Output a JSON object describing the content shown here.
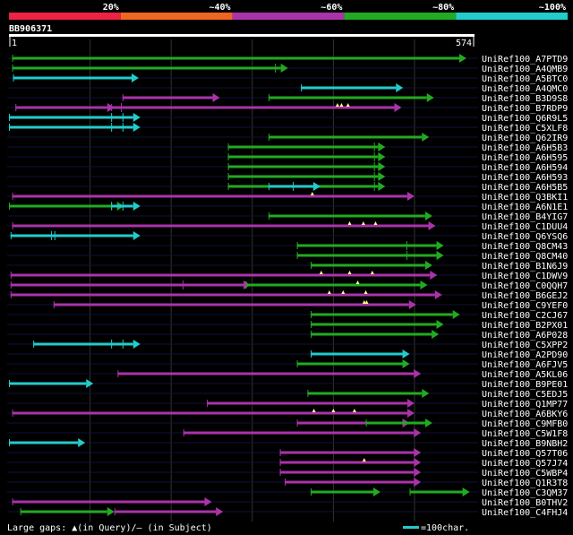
{
  "query": {
    "name": "BB906371",
    "length": 574,
    "start_label": "1",
    "end_label": "574"
  },
  "legend": {
    "gaps_text": "Large gaps: ▲(in Query)/– (in Subject)",
    "scale_text": "=100char."
  },
  "colors": {
    "background": "#000000",
    "grid": "#333333",
    "axis": "#ffffff",
    "text": "#ffffff",
    "gap_marker": "#ffff88",
    "red": "#ee2244",
    "orange": "#ee6622",
    "purple": "#aa33aa",
    "green": "#22aa22",
    "cyan": "#22cccc"
  },
  "chart_data": {
    "type": "alignment",
    "x_range": [
      0,
      574
    ],
    "grid_x": [
      100,
      200,
      300,
      400,
      500
    ],
    "identity_bins": [
      {
        "label": "20%",
        "color": "red"
      },
      {
        "label": "~40%",
        "color": "orange"
      },
      {
        "label": "~60%",
        "color": "purple"
      },
      {
        "label": "~80%",
        "color": "green"
      },
      {
        "label": "~100%",
        "color": "cyan"
      }
    ],
    "hits": [
      {
        "name": "UniRef100_A7PTD9",
        "color": "green",
        "start": 4,
        "end": 564,
        "ticks": [],
        "gaps": [],
        "sgaps": [
          [
            420,
            430
          ],
          [
            450,
            472
          ]
        ]
      },
      {
        "name": "UniRef100_A4QMB9",
        "color": "green",
        "start": 4,
        "end": 344,
        "ticks": [
          328
        ],
        "gaps": [],
        "sgaps": []
      },
      {
        "name": "UniRef100_A5BTC0",
        "color": "cyan",
        "start": 5,
        "end": 160,
        "ticks": [],
        "gaps": [],
        "sgaps": []
      },
      {
        "name": "UniRef100_A4QMC0",
        "color": "cyan",
        "start": 360,
        "end": 486,
        "ticks": [],
        "gaps": [],
        "sgaps": []
      },
      {
        "name": "UniRef100_B3D9S8",
        "color": "purple",
        "start": 140,
        "end": 260,
        "ticks": [],
        "gaps": [],
        "sgaps": []
      },
      {
        "name": "UniRef100_B3D9S8",
        "color": "green",
        "start": 320,
        "end": 524,
        "ticks": [],
        "gaps": [],
        "sgaps": []
      },
      {
        "name": "UniRef100_B7RDP9",
        "color": "purple",
        "start": 8,
        "end": 130,
        "ticks": [],
        "gaps": [],
        "sgaps": []
      },
      {
        "name": "UniRef100_B7RDP9",
        "color": "purple",
        "start": 126,
        "end": 484,
        "ticks": [
          138
        ],
        "gaps": [
          405,
          410,
          418
        ],
        "sgaps": []
      },
      {
        "name": "UniRef100_Q6R9L5",
        "color": "cyan",
        "start": 0,
        "end": 162,
        "ticks": [
          126,
          140
        ],
        "gaps": [],
        "sgaps": []
      },
      {
        "name": "UniRef100_C5XLF8",
        "color": "cyan",
        "start": 0,
        "end": 162,
        "ticks": [
          126,
          140
        ],
        "gaps": [],
        "sgaps": []
      },
      {
        "name": "UniRef100_Q62IR9",
        "color": "green",
        "start": 320,
        "end": 518,
        "ticks": [],
        "gaps": [],
        "sgaps": []
      },
      {
        "name": "UniRef100_A6H5B3",
        "color": "green",
        "start": 270,
        "end": 464,
        "ticks": [
          450
        ],
        "gaps": [],
        "sgaps": []
      },
      {
        "name": "UniRef100_A6H595",
        "color": "green",
        "start": 270,
        "end": 464,
        "ticks": [
          450
        ],
        "gaps": [],
        "sgaps": []
      },
      {
        "name": "UniRef100_A6H594",
        "color": "green",
        "start": 270,
        "end": 464,
        "ticks": [
          450
        ],
        "gaps": [],
        "sgaps": []
      },
      {
        "name": "UniRef100_A6H593",
        "color": "green",
        "start": 270,
        "end": 464,
        "ticks": [
          450
        ],
        "gaps": [],
        "sgaps": []
      },
      {
        "name": "UniRef100_A6H5B5",
        "color": "green",
        "start": 270,
        "end": 464,
        "ticks": [
          450
        ],
        "gaps": [],
        "sgaps": []
      },
      {
        "name": "UniRef100_A6H5B5",
        "color": "cyan",
        "start": 320,
        "end": 384,
        "ticks": [
          350
        ],
        "gaps": [],
        "sgaps": []
      },
      {
        "name": "UniRef100_Q3BKI1",
        "color": "purple",
        "start": 4,
        "end": 500,
        "ticks": [],
        "gaps": [
          374
        ],
        "sgaps": [
          [
            408,
            440
          ]
        ]
      },
      {
        "name": "UniRef100_A6N1E1",
        "color": "green",
        "start": 0,
        "end": 142,
        "ticks": [
          126
        ],
        "gaps": [],
        "sgaps": []
      },
      {
        "name": "UniRef100_A6N1E1",
        "color": "cyan",
        "start": 126,
        "end": 162,
        "ticks": [
          140
        ],
        "gaps": [],
        "sgaps": []
      },
      {
        "name": "UniRef100_B4YIG7",
        "color": "green",
        "start": 320,
        "end": 522,
        "ticks": [],
        "gaps": [],
        "sgaps": []
      },
      {
        "name": "UniRef100_C1DUU4",
        "color": "purple",
        "start": 4,
        "end": 526,
        "ticks": [],
        "gaps": [
          420,
          437,
          452
        ],
        "sgaps": []
      },
      {
        "name": "UniRef100_Q6YSQ6",
        "color": "cyan",
        "start": 2,
        "end": 162,
        "ticks": [
          52,
          56
        ],
        "gaps": [],
        "sgaps": []
      },
      {
        "name": "UniRef100_Q8CM43",
        "color": "green",
        "start": 355,
        "end": 536,
        "ticks": [
          490
        ],
        "gaps": [],
        "sgaps": []
      },
      {
        "name": "UniRef100_Q8CM40",
        "color": "green",
        "start": 355,
        "end": 536,
        "ticks": [
          490
        ],
        "gaps": [],
        "sgaps": []
      },
      {
        "name": "UniRef100_B1N6J9",
        "color": "green",
        "start": 372,
        "end": 522,
        "ticks": [],
        "gaps": [],
        "sgaps": []
      },
      {
        "name": "UniRef100_C1DWV9",
        "color": "purple",
        "start": 2,
        "end": 528,
        "ticks": [],
        "gaps": [
          385,
          420,
          448
        ],
        "sgaps": []
      },
      {
        "name": "UniRef100_C0QQH7",
        "color": "purple",
        "start": 2,
        "end": 298,
        "ticks": [
          214
        ],
        "gaps": [],
        "sgaps": [
          [
            280,
            290
          ]
        ]
      },
      {
        "name": "UniRef100_C0QQH7",
        "color": "green",
        "start": 292,
        "end": 516,
        "ticks": [],
        "gaps": [
          430
        ],
        "sgaps": []
      },
      {
        "name": "UniRef100_B6GEJ2",
        "color": "purple",
        "start": 2,
        "end": 534,
        "ticks": [],
        "gaps": [
          395,
          412,
          440
        ],
        "sgaps": []
      },
      {
        "name": "UniRef100_C9YEF0",
        "color": "purple",
        "start": 55,
        "end": 502,
        "ticks": [],
        "gaps": [
          438,
          441
        ],
        "sgaps": []
      },
      {
        "name": "UniRef100_C2CJ67",
        "color": "green",
        "start": 372,
        "end": 556,
        "ticks": [],
        "gaps": [],
        "sgaps": []
      },
      {
        "name": "UniRef100_B2PX01",
        "color": "green",
        "start": 372,
        "end": 536,
        "ticks": [],
        "gaps": [],
        "sgaps": []
      },
      {
        "name": "UniRef100_A6P028",
        "color": "green",
        "start": 372,
        "end": 530,
        "ticks": [],
        "gaps": [],
        "sgaps": []
      },
      {
        "name": "UniRef100_C5XPP2",
        "color": "cyan",
        "start": 30,
        "end": 162,
        "ticks": [
          126,
          140
        ],
        "gaps": [],
        "sgaps": []
      },
      {
        "name": "UniRef100_A2PD90",
        "color": "cyan",
        "start": 372,
        "end": 494,
        "ticks": [],
        "gaps": [],
        "sgaps": []
      },
      {
        "name": "UniRef100_A6FJV5",
        "color": "green",
        "start": 355,
        "end": 494,
        "ticks": [],
        "gaps": [],
        "sgaps": []
      },
      {
        "name": "UniRef100_A5KL06",
        "color": "purple",
        "start": 134,
        "end": 508,
        "ticks": [],
        "gaps": [],
        "sgaps": []
      },
      {
        "name": "UniRef100_B9PE01",
        "color": "cyan",
        "start": 0,
        "end": 104,
        "ticks": [],
        "gaps": [],
        "sgaps": []
      },
      {
        "name": "UniRef100_C5EDJ5",
        "color": "green",
        "start": 368,
        "end": 518,
        "ticks": [],
        "gaps": [],
        "sgaps": []
      },
      {
        "name": "UniRef100_Q1MP77",
        "color": "purple",
        "start": 244,
        "end": 500,
        "ticks": [],
        "gaps": [],
        "sgaps": []
      },
      {
        "name": "UniRef100_A6BKY6",
        "color": "purple",
        "start": 4,
        "end": 500,
        "ticks": [],
        "gaps": [
          376,
          400,
          426
        ],
        "sgaps": [
          [
            460,
            468
          ]
        ]
      },
      {
        "name": "UniRef100_C9MFB0",
        "color": "purple",
        "start": 355,
        "end": 494,
        "ticks": [],
        "gaps": [],
        "sgaps": []
      },
      {
        "name": "UniRef100_C9MFB0",
        "color": "green",
        "start": 440,
        "end": 522,
        "ticks": [],
        "gaps": [],
        "sgaps": []
      },
      {
        "name": "UniRef100_C5W1F8",
        "color": "purple",
        "start": 215,
        "end": 508,
        "ticks": [],
        "gaps": [],
        "sgaps": [
          [
            395,
            412
          ]
        ]
      },
      {
        "name": "UniRef100_B9NBH2",
        "color": "cyan",
        "start": 0,
        "end": 94,
        "ticks": [],
        "gaps": [],
        "sgaps": []
      },
      {
        "name": "UniRef100_Q57T06",
        "color": "purple",
        "start": 334,
        "end": 508,
        "ticks": [],
        "gaps": [],
        "sgaps": []
      },
      {
        "name": "UniRef100_Q57J74",
        "color": "purple",
        "start": 334,
        "end": 508,
        "ticks": [],
        "gaps": [
          438
        ],
        "sgaps": []
      },
      {
        "name": "UniRef100_C5WBP4",
        "color": "purple",
        "start": 334,
        "end": 508,
        "ticks": [],
        "gaps": [],
        "sgaps": []
      },
      {
        "name": "UniRef100_Q1R3T8",
        "color": "purple",
        "start": 340,
        "end": 508,
        "ticks": [],
        "gaps": [],
        "sgaps": []
      },
      {
        "name": "UniRef100_C3QM37",
        "color": "green",
        "start": 372,
        "end": 458,
        "ticks": [],
        "gaps": [],
        "sgaps": []
      },
      {
        "name": "UniRef100_C3QM37",
        "color": "green",
        "start": 494,
        "end": 568,
        "ticks": [],
        "gaps": [],
        "sgaps": []
      },
      {
        "name": "UniRef100_B0THV2",
        "color": "purple",
        "start": 4,
        "end": 250,
        "ticks": [],
        "gaps": [],
        "sgaps": []
      },
      {
        "name": "UniRef100_C4FHJ4",
        "color": "green",
        "start": 14,
        "end": 130,
        "ticks": [],
        "gaps": [],
        "sgaps": []
      },
      {
        "name": "UniRef100_C4FHJ4",
        "color": "purple",
        "start": 130,
        "end": 264,
        "ticks": [],
        "gaps": [],
        "sgaps": []
      }
    ]
  }
}
